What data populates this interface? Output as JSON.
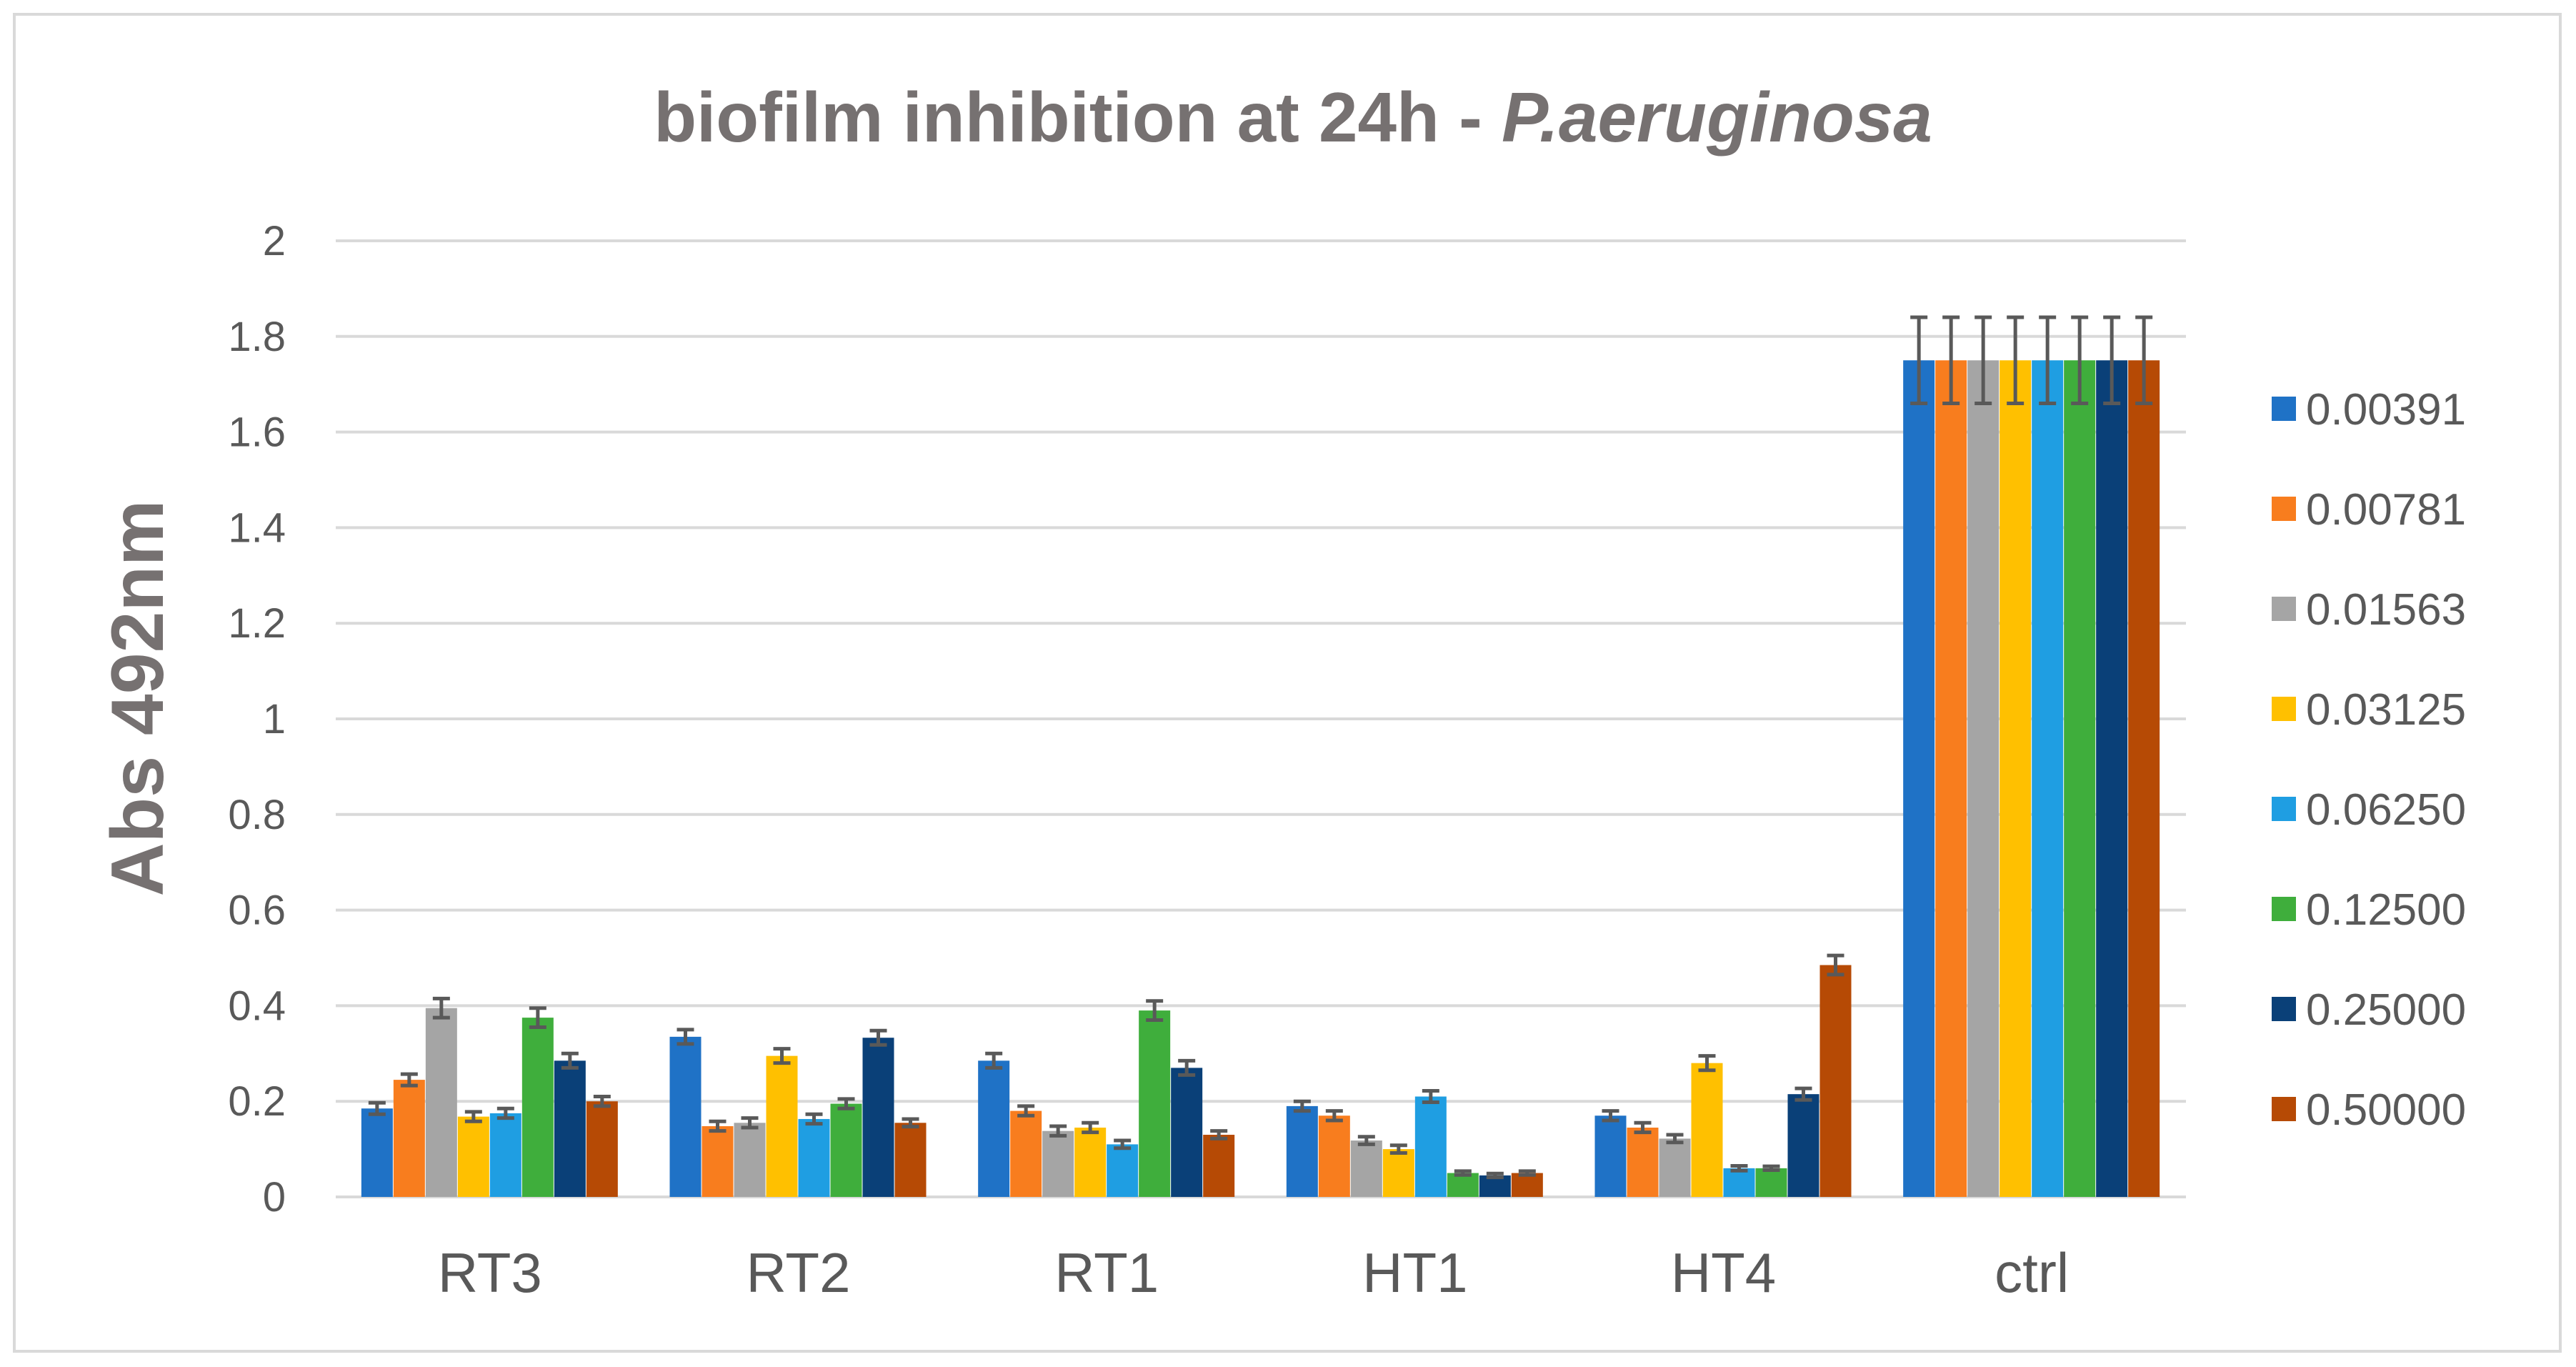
{
  "chart_data": {
    "type": "bar",
    "title": "biofilm inhibition at 24h - ",
    "title_italic": "P.aeruginosa",
    "xlabel": "",
    "ylabel": "Abs 492nm",
    "ylim": [
      0,
      2
    ],
    "yticks": [
      "0",
      "0.2",
      "0.4",
      "0.6",
      "0.8",
      "1",
      "1.2",
      "1.4",
      "1.6",
      "1.8",
      "2"
    ],
    "grid": true,
    "legend_position": "right",
    "error_bars": true,
    "categories": [
      "RT3",
      "RT2",
      "RT1",
      "HT1",
      "HT4",
      "ctrl"
    ],
    "series": [
      {
        "name": "0.00391",
        "color": "#1f72c6",
        "values": [
          0.185,
          0.335,
          0.285,
          0.19,
          0.17,
          1.75
        ],
        "errors": [
          0.012,
          0.015,
          0.015,
          0.01,
          0.01,
          0.09
        ]
      },
      {
        "name": "0.00781",
        "color": "#f87d1e",
        "values": [
          0.245,
          0.148,
          0.18,
          0.17,
          0.145,
          1.75
        ],
        "errors": [
          0.012,
          0.01,
          0.01,
          0.01,
          0.01,
          0.09
        ]
      },
      {
        "name": "0.01563",
        "color": "#a5a5a5",
        "values": [
          0.395,
          0.155,
          0.138,
          0.118,
          0.122,
          1.75
        ],
        "errors": [
          0.02,
          0.01,
          0.01,
          0.008,
          0.008,
          0.09
        ]
      },
      {
        "name": "0.03125",
        "color": "#ffc000",
        "values": [
          0.168,
          0.295,
          0.145,
          0.1,
          0.28,
          1.75
        ],
        "errors": [
          0.01,
          0.015,
          0.01,
          0.008,
          0.015,
          0.09
        ]
      },
      {
        "name": "0.06250",
        "color": "#1f9ee2",
        "values": [
          0.175,
          0.163,
          0.11,
          0.21,
          0.06,
          1.75
        ],
        "errors": [
          0.01,
          0.01,
          0.008,
          0.012,
          0.005,
          0.09
        ]
      },
      {
        "name": "0.12500",
        "color": "#3fae3c",
        "values": [
          0.375,
          0.195,
          0.39,
          0.05,
          0.06,
          1.75
        ],
        "errors": [
          0.02,
          0.01,
          0.02,
          0.004,
          0.004,
          0.09
        ]
      },
      {
        "name": "0.25000",
        "color": "#0a4078",
        "values": [
          0.285,
          0.333,
          0.27,
          0.045,
          0.215,
          1.75
        ],
        "errors": [
          0.015,
          0.015,
          0.015,
          0.004,
          0.012,
          0.09
        ]
      },
      {
        "name": "0.50000",
        "color": "#b64a05",
        "values": [
          0.2,
          0.155,
          0.13,
          0.05,
          0.485,
          1.75
        ],
        "errors": [
          0.01,
          0.008,
          0.008,
          0.004,
          0.02,
          0.09
        ]
      }
    ]
  }
}
